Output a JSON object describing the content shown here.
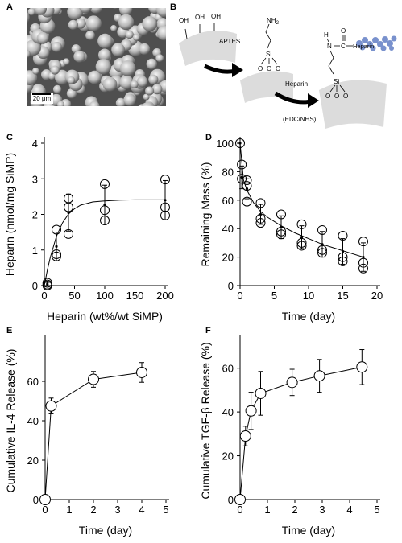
{
  "panels": {
    "a": {
      "label": "A",
      "scale_bar": "20 μm"
    },
    "b": {
      "label": "B",
      "chem": {
        "oh1": "OH",
        "oh2": "OH",
        "oh3": "OH",
        "nh2": "NH",
        "nh2_sub": "2",
        "si1": "Si",
        "si2": "Si",
        "o1": "O",
        "o2": "O",
        "o3": "O",
        "o4": "O",
        "o5": "O",
        "o6": "O",
        "h": "H",
        "n": "N",
        "c": "C",
        "carbonyl_o": "O",
        "heparin_tag": "Heparin"
      },
      "step1": "APTES",
      "step2": "Heparin",
      "step2_cond": "(EDC/NHS)"
    }
  },
  "chart_data": [
    {
      "panel": "C",
      "type": "scatter",
      "xlabel": "Heparin (wt%/wt SiMP)",
      "ylabel": "Heparin (nmol/mg SiMP)",
      "xlim": [
        0,
        200
      ],
      "ylim": [
        0,
        4
      ],
      "xticks": [
        "0",
        "50",
        "100",
        "150",
        "200"
      ],
      "yticks": [
        "0",
        "1",
        "2",
        "3",
        "4"
      ],
      "points": [
        {
          "x": 5,
          "y": 0.08
        },
        {
          "x": 5,
          "y": 0.0
        },
        {
          "x": 5,
          "y": 0.03
        },
        {
          "x": 20,
          "y": 1.57
        },
        {
          "x": 20,
          "y": 0.88
        },
        {
          "x": 20,
          "y": 0.82
        },
        {
          "x": 40,
          "y": 2.45
        },
        {
          "x": 40,
          "y": 2.2
        },
        {
          "x": 40,
          "y": 1.45
        },
        {
          "x": 100,
          "y": 2.85
        },
        {
          "x": 100,
          "y": 2.12
        },
        {
          "x": 100,
          "y": 1.83
        },
        {
          "x": 200,
          "y": 2.98
        },
        {
          "x": 200,
          "y": 2.2
        },
        {
          "x": 200,
          "y": 1.97
        }
      ],
      "mean": [
        {
          "x": 5,
          "y": 0.04,
          "sd": 0.05
        },
        {
          "x": 20,
          "y": 1.1,
          "sd": 0.4
        },
        {
          "x": 40,
          "y": 2.05,
          "sd": 0.52
        },
        {
          "x": 100,
          "y": 2.27,
          "sd": 0.55
        },
        {
          "x": 200,
          "y": 2.4,
          "sd": 0.55
        }
      ],
      "fit": {
        "x": [
          0,
          5,
          10,
          20,
          30,
          40,
          50,
          60,
          80,
          100,
          125,
          150,
          175,
          200
        ],
        "y": [
          0,
          0.44,
          0.8,
          1.38,
          1.76,
          2.01,
          2.16,
          2.26,
          2.35,
          2.38,
          2.4,
          2.41,
          2.41,
          2.41
        ]
      }
    },
    {
      "panel": "D",
      "type": "scatter",
      "xlabel": "Time (day)",
      "ylabel": "Remaining Mass (%)",
      "xlim": [
        0,
        20
      ],
      "ylim": [
        0,
        100
      ],
      "xticks": [
        "0",
        "5",
        "10",
        "15",
        "20"
      ],
      "yticks": [
        "0",
        "20",
        "40",
        "60",
        "80",
        "100"
      ],
      "points": [
        {
          "x": 0,
          "y": 100
        },
        {
          "x": 0.25,
          "y": 85
        },
        {
          "x": 0.25,
          "y": 75
        },
        {
          "x": 1,
          "y": 74
        },
        {
          "x": 1,
          "y": 70
        },
        {
          "x": 1,
          "y": 59
        },
        {
          "x": 3,
          "y": 58
        },
        {
          "x": 3,
          "y": 47
        },
        {
          "x": 3,
          "y": 44
        },
        {
          "x": 6,
          "y": 50
        },
        {
          "x": 6,
          "y": 38
        },
        {
          "x": 6,
          "y": 36
        },
        {
          "x": 9,
          "y": 43
        },
        {
          "x": 9,
          "y": 30
        },
        {
          "x": 9,
          "y": 28
        },
        {
          "x": 12,
          "y": 39
        },
        {
          "x": 12,
          "y": 25
        },
        {
          "x": 12,
          "y": 23
        },
        {
          "x": 15,
          "y": 35
        },
        {
          "x": 15,
          "y": 20
        },
        {
          "x": 15,
          "y": 17
        },
        {
          "x": 18,
          "y": 31
        },
        {
          "x": 18,
          "y": 16
        },
        {
          "x": 18,
          "y": 12
        }
      ],
      "mean": [
        {
          "x": 0,
          "y": 100,
          "sd": 0
        },
        {
          "x": 0.25,
          "y": 76,
          "sd": 8
        },
        {
          "x": 1,
          "y": 68,
          "sd": 7
        },
        {
          "x": 3,
          "y": 50,
          "sd": 7
        },
        {
          "x": 6,
          "y": 41,
          "sd": 8
        },
        {
          "x": 9,
          "y": 34,
          "sd": 8
        },
        {
          "x": 12,
          "y": 29,
          "sd": 9
        },
        {
          "x": 15,
          "y": 24,
          "sd": 9
        },
        {
          "x": 18,
          "y": 20,
          "sd": 10
        }
      ],
      "fit": {
        "x": [
          0,
          0.5,
          1,
          2,
          3,
          4,
          6,
          8,
          10,
          12,
          14,
          16,
          18
        ],
        "y": [
          100,
          74,
          67,
          58,
          52,
          48,
          42,
          37,
          33,
          29,
          26,
          23,
          20
        ]
      }
    },
    {
      "panel": "E",
      "type": "line",
      "xlabel": "Time (day)",
      "ylabel": "Cumulative IL-4 Release (%)",
      "xlim": [
        0,
        5
      ],
      "ylim": [
        0,
        80
      ],
      "xticks": [
        "0",
        "1",
        "2",
        "3",
        "4",
        "5"
      ],
      "yticks": [
        "0",
        "20",
        "40",
        "60"
      ],
      "series": [
        {
          "x": [
            0,
            0.25,
            2,
            4
          ],
          "y": [
            0,
            47.5,
            61,
            64.5
          ],
          "err": [
            0,
            4,
            4,
            5
          ]
        }
      ]
    },
    {
      "panel": "F",
      "type": "line",
      "xlabel": "Time (day)",
      "ylabel": "Cumulative TGF-β Release (%)",
      "xlim": [
        0,
        5
      ],
      "ylim": [
        0,
        72
      ],
      "xticks": [
        "0",
        "1",
        "2",
        "3",
        "4",
        "5"
      ],
      "yticks": [
        "0",
        "20",
        "40",
        "60"
      ],
      "series": [
        {
          "x": [
            0,
            0.2,
            0.4,
            0.75,
            1.9,
            2.9,
            4.45
          ],
          "y": [
            0,
            29,
            40.5,
            48.5,
            53.5,
            56.5,
            60.5
          ],
          "err": [
            0,
            4.5,
            8.5,
            10,
            6,
            7.5,
            8
          ]
        }
      ]
    }
  ]
}
